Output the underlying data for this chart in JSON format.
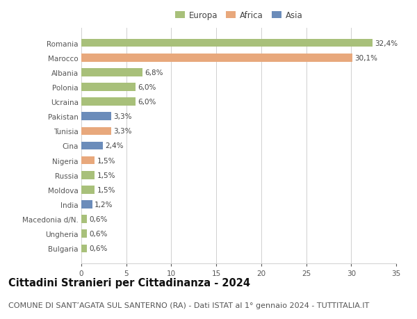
{
  "countries": [
    "Romania",
    "Marocco",
    "Albania",
    "Polonia",
    "Ucraina",
    "Pakistan",
    "Tunisia",
    "Cina",
    "Nigeria",
    "Russia",
    "Moldova",
    "India",
    "Macedonia d/N.",
    "Ungheria",
    "Bulgaria"
  ],
  "values": [
    32.4,
    30.1,
    6.8,
    6.0,
    6.0,
    3.3,
    3.3,
    2.4,
    1.5,
    1.5,
    1.5,
    1.2,
    0.6,
    0.6,
    0.6
  ],
  "labels": [
    "32,4%",
    "30,1%",
    "6,8%",
    "6,0%",
    "6,0%",
    "3,3%",
    "3,3%",
    "2,4%",
    "1,5%",
    "1,5%",
    "1,5%",
    "1,2%",
    "0,6%",
    "0,6%",
    "0,6%"
  ],
  "continents": [
    "Europa",
    "Africa",
    "Europa",
    "Europa",
    "Europa",
    "Asia",
    "Africa",
    "Asia",
    "Africa",
    "Europa",
    "Europa",
    "Asia",
    "Europa",
    "Europa",
    "Europa"
  ],
  "colors": {
    "Europa": "#a8c07a",
    "Africa": "#e8a87c",
    "Asia": "#6b8cba"
  },
  "legend_order": [
    "Europa",
    "Africa",
    "Asia"
  ],
  "xlim": [
    0,
    35
  ],
  "xticks": [
    0,
    5,
    10,
    15,
    20,
    25,
    30,
    35
  ],
  "title": "Cittadini Stranieri per Cittadinanza - 2024",
  "subtitle": "COMUNE DI SANT’AGATA SUL SANTERNO (RA) - Dati ISTAT al 1° gennaio 2024 - TUTTITALIA.IT",
  "bg_color": "#ffffff",
  "grid_color": "#d0d0d0",
  "bar_height": 0.55,
  "title_fontsize": 10.5,
  "subtitle_fontsize": 8,
  "label_fontsize": 7.5,
  "tick_fontsize": 7.5,
  "legend_fontsize": 8.5
}
